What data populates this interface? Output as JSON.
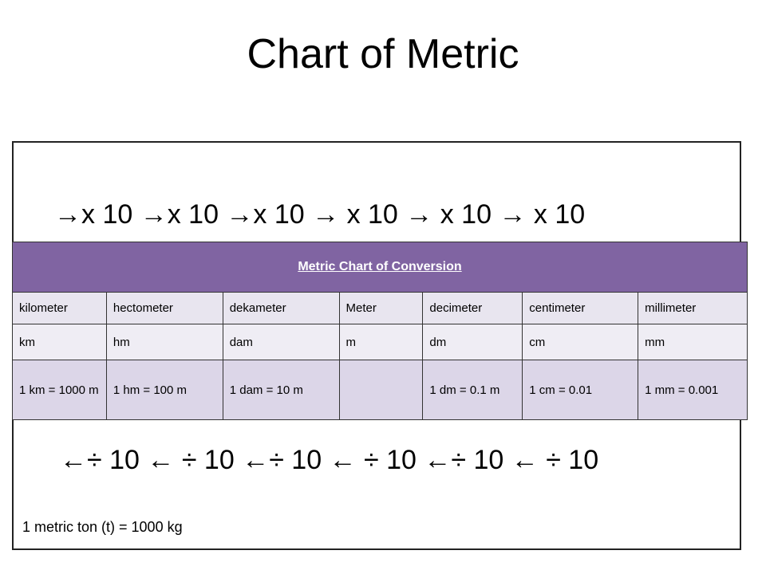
{
  "title": "Chart of Metric",
  "multiply_arrows": "→x 10 →x 10 →x 10 → x 10 → x 10 → x 10",
  "table": {
    "header": "Metric Chart of Conversion",
    "rows": [
      [
        "kilometer",
        "hectometer",
        "dekameter",
        "Meter",
        "decimeter",
        "centimeter",
        "millimeter"
      ],
      [
        "km",
        "hm",
        "dam",
        "m",
        "dm",
        "cm",
        "mm"
      ],
      [
        "1 km = 1000 m",
        "1 hm = 100 m",
        "1 dam = 10 m",
        null,
        "1 dm = 0.1 m",
        "1 cm = 0.01",
        "1 mm = 0.001"
      ]
    ]
  },
  "divide_arrows": "←÷ 10 ← ÷ 10 ←÷ 10 ← ÷ 10 ←÷ 10 ← ÷ 10",
  "footnote": "1 metric ton (t) = 1000 kg"
}
